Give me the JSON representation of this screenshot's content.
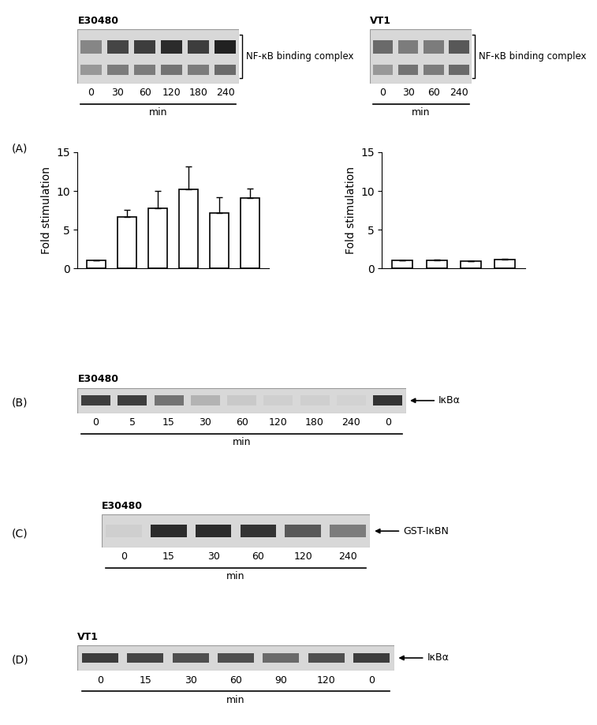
{
  "panel_labels": [
    "(A)",
    "(B)",
    "(C)",
    "(D)"
  ],
  "blots": [
    {
      "panel": "(A)",
      "title": "E30480",
      "label": "NF-κB binding complex",
      "marker": "bracket",
      "lanes": [
        "0",
        "30",
        "60",
        "120",
        "180",
        "240"
      ],
      "xlabel": "min",
      "upper_band": [
        0.45,
        0.8,
        0.85,
        0.95,
        0.85,
        1.0
      ],
      "lower_band": [
        0.35,
        0.5,
        0.5,
        0.55,
        0.5,
        0.6
      ]
    },
    {
      "panel": "(A)",
      "title": "VT1",
      "label": "NF-κB binding complex",
      "marker": "bracket",
      "lanes": [
        "0",
        "30",
        "60",
        "240"
      ],
      "xlabel": "min",
      "upper_band": [
        0.6,
        0.5,
        0.5,
        0.7
      ],
      "lower_band": [
        0.35,
        0.55,
        0.5,
        0.6
      ]
    },
    {
      "panel": "(B)",
      "title": "E30480",
      "label": "IκBα",
      "marker": "arrow",
      "lanes": [
        "0",
        "5",
        "15",
        "30",
        "60",
        "120",
        "180",
        "240",
        "0"
      ],
      "xlabel": "min",
      "band": [
        0.85,
        0.85,
        0.55,
        0.2,
        0.08,
        0.05,
        0.05,
        0.03,
        0.9
      ]
    },
    {
      "panel": "(C)",
      "title": "E30480",
      "label": "GST-IκBN",
      "marker": "arrow",
      "lanes": [
        "0",
        "15",
        "30",
        "60",
        "120",
        "240"
      ],
      "xlabel": "min",
      "band": [
        0.05,
        0.95,
        0.95,
        0.9,
        0.7,
        0.5
      ]
    },
    {
      "panel": "(D)",
      "title": "VT1",
      "label": "IκBα",
      "marker": "arrow",
      "lanes": [
        "0",
        "15",
        "30",
        "60",
        "90",
        "120",
        "0"
      ],
      "xlabel": "min",
      "band": [
        0.85,
        0.8,
        0.75,
        0.75,
        0.6,
        0.75,
        0.85
      ]
    }
  ],
  "chart_data": [
    {
      "type": "bar",
      "ylabel": "Fold stimulation",
      "categories": [
        null,
        null,
        null,
        null,
        null,
        null
      ],
      "values": [
        1,
        6.6,
        7.8,
        10.2,
        7.1,
        9.1
      ],
      "errors": [
        0,
        1.0,
        2.2,
        3.0,
        2.1,
        1.2
      ],
      "color": "#ffffff",
      "ylim": [
        0,
        15
      ],
      "yticks": [
        0,
        5,
        10,
        15
      ],
      "tick_labels": "y"
    },
    {
      "type": "bar",
      "ylabel": "Fold stimulation",
      "categories": [
        null,
        null,
        null,
        null
      ],
      "values": [
        1,
        1,
        0.95,
        1.1
      ],
      "errors": [
        0,
        0.12,
        0,
        0.15
      ],
      "color": "#ffffff",
      "ylim": [
        0,
        15
      ],
      "yticks": [
        0,
        5,
        10,
        15
      ],
      "tick_labels": "y"
    }
  ]
}
